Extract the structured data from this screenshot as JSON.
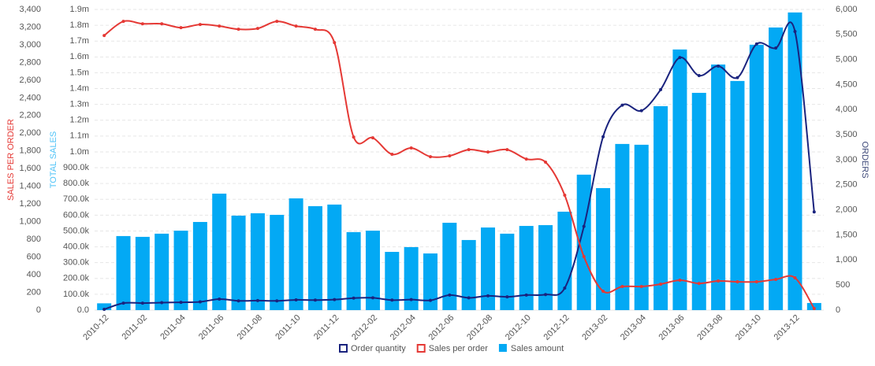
{
  "chart_data": {
    "type": "combo",
    "y_label": "TOTAL SALES",
    "y2_label": "ORDERS",
    "y3_label": "SALES PER ORDER",
    "categories": [
      "2010-12",
      null,
      "2011-02",
      null,
      "2011-04",
      null,
      "2011-06",
      null,
      "2011-08",
      null,
      "2011-10",
      null,
      "2011-12",
      null,
      "2012-02",
      null,
      "2012-04",
      null,
      "2012-06",
      null,
      "2012-08",
      null,
      "2012-10",
      null,
      "2012-12",
      null,
      "2013-02",
      null,
      "2013-04",
      null,
      "2013-06",
      null,
      "2013-08",
      null,
      "2013-10",
      null,
      "2013-12",
      null
    ],
    "ylim": [
      0,
      1900000
    ],
    "yticks": [
      {
        "value": 0,
        "label": "0.0"
      },
      {
        "value": 100000,
        "label": "100.0k"
      },
      {
        "value": 200000,
        "label": "200.0k"
      },
      {
        "value": 300000,
        "label": "300.0k"
      },
      {
        "value": 400000,
        "label": "400.0k"
      },
      {
        "value": 500000,
        "label": "500.0k"
      },
      {
        "value": 600000,
        "label": "600.0k"
      },
      {
        "value": 700000,
        "label": "700.0k"
      },
      {
        "value": 800000,
        "label": "800.0k"
      },
      {
        "value": 900000,
        "label": "900.0k"
      },
      {
        "value": 1000000,
        "label": "1.0m"
      },
      {
        "value": 1100000,
        "label": "1.1m"
      },
      {
        "value": 1200000,
        "label": "1.2m"
      },
      {
        "value": 1300000,
        "label": "1.3m"
      },
      {
        "value": 1400000,
        "label": "1.4m"
      },
      {
        "value": 1500000,
        "label": "1.5m"
      },
      {
        "value": 1600000,
        "label": "1.6m"
      },
      {
        "value": 1700000,
        "label": "1.7m"
      },
      {
        "value": 1800000,
        "label": "1.8m"
      },
      {
        "value": 1900000,
        "label": "1.9m"
      }
    ],
    "y2lim": [
      0,
      6000
    ],
    "y2ticks": [
      0,
      500,
      {
        "value": 1000,
        "label": "1,000"
      },
      {
        "value": 1500,
        "label": "1,500"
      },
      {
        "value": 2000,
        "label": "2,000"
      },
      {
        "value": 2500,
        "label": "2,500"
      },
      {
        "value": 3000,
        "label": "3,000"
      },
      {
        "value": 3500,
        "label": "3,500"
      },
      {
        "value": 4000,
        "label": "4,000"
      },
      {
        "value": 4500,
        "label": "4,500"
      },
      {
        "value": 5000,
        "label": "5,000"
      },
      {
        "value": 5500,
        "label": "5,500"
      },
      {
        "value": 6000,
        "label": "6,000"
      }
    ],
    "y3lim": [
      0,
      3400
    ],
    "y3ticks": [
      0,
      200,
      400,
      600,
      800,
      {
        "value": 1000,
        "label": "1,000"
      },
      {
        "value": 1200,
        "label": "1,200"
      },
      {
        "value": 1400,
        "label": "1,400"
      },
      {
        "value": 1600,
        "label": "1,600"
      },
      {
        "value": 1800,
        "label": "1,800"
      },
      {
        "value": 2000,
        "label": "2,000"
      },
      {
        "value": 2200,
        "label": "2,200"
      },
      {
        "value": 2400,
        "label": "2,400"
      },
      {
        "value": 2600,
        "label": "2,600"
      },
      {
        "value": 2800,
        "label": "2,800"
      },
      {
        "value": 3000,
        "label": "3,000"
      },
      {
        "value": 3200,
        "label": "3,200"
      },
      {
        "value": 3400,
        "label": "3,400"
      }
    ],
    "grid": true,
    "legend": "bottom",
    "series": [
      {
        "name": "Order quantity",
        "type": "line",
        "axis": "y2",
        "color": "#1a237e",
        "values": [
          15,
          140,
          140,
          150,
          155,
          165,
          220,
          185,
          190,
          185,
          205,
          200,
          210,
          240,
          245,
          200,
          210,
          195,
          300,
          245,
          285,
          265,
          300,
          310,
          440,
          1670,
          3460,
          4090,
          3980,
          4400,
          5040,
          4680,
          4870,
          4640,
          5310,
          5230,
          5560,
          1960
        ]
      },
      {
        "name": "Sales per order",
        "type": "line",
        "axis": "y3",
        "color": "#e53935",
        "values": [
          3105,
          3265,
          3238,
          3238,
          3194,
          3230,
          3212,
          3176,
          3185,
          3265,
          3212,
          3176,
          3025,
          1957,
          1948,
          1762,
          1833,
          1735,
          1744,
          1815,
          1788,
          1815,
          1708,
          1673,
          1299,
          605,
          214,
          267,
          267,
          294,
          338,
          302,
          329,
          320,
          320,
          347,
          365,
          18
        ]
      },
      {
        "name": "Sales amount",
        "type": "bar",
        "axis": "y",
        "color": "#03a9f4",
        "values": [
          43000,
          468000,
          463000,
          483000,
          502000,
          557000,
          736000,
          597000,
          612000,
          602000,
          706000,
          657000,
          667000,
          493000,
          502000,
          368000,
          398000,
          358000,
          552000,
          443000,
          522000,
          483000,
          532000,
          537000,
          622000,
          856000,
          771000,
          1050000,
          1045000,
          1289000,
          1647000,
          1373000,
          1552000,
          1448000,
          1677000,
          1786000,
          1881000,
          45000
        ]
      }
    ]
  }
}
